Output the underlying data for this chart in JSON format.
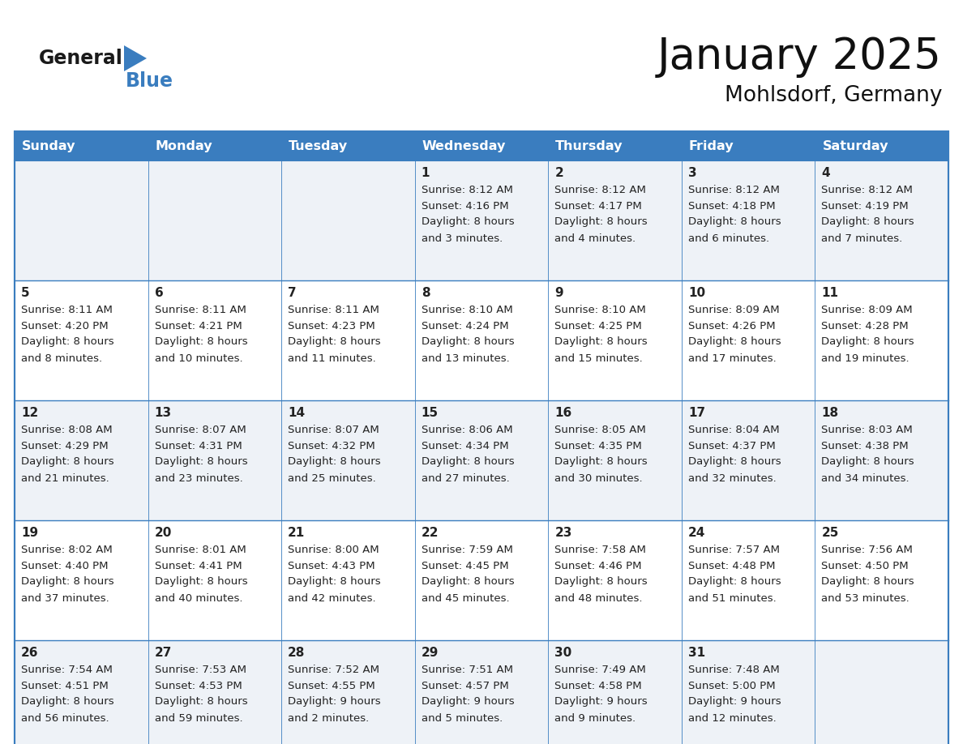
{
  "title": "January 2025",
  "subtitle": "Mohlsdorf, Germany",
  "header_color": "#3a7dbf",
  "header_text_color": "#ffffff",
  "cell_bg_even": "#eef2f7",
  "cell_bg_odd": "#ffffff",
  "border_color": "#3a7dbf",
  "text_color": "#222222",
  "day_names": [
    "Sunday",
    "Monday",
    "Tuesday",
    "Wednesday",
    "Thursday",
    "Friday",
    "Saturday"
  ],
  "days": [
    {
      "date": 1,
      "col": 3,
      "row": 0,
      "sunrise": "8:12 AM",
      "sunset": "4:16 PM",
      "daylight": "8 hours and 3 minutes."
    },
    {
      "date": 2,
      "col": 4,
      "row": 0,
      "sunrise": "8:12 AM",
      "sunset": "4:17 PM",
      "daylight": "8 hours and 4 minutes."
    },
    {
      "date": 3,
      "col": 5,
      "row": 0,
      "sunrise": "8:12 AM",
      "sunset": "4:18 PM",
      "daylight": "8 hours and 6 minutes."
    },
    {
      "date": 4,
      "col": 6,
      "row": 0,
      "sunrise": "8:12 AM",
      "sunset": "4:19 PM",
      "daylight": "8 hours and 7 minutes."
    },
    {
      "date": 5,
      "col": 0,
      "row": 1,
      "sunrise": "8:11 AM",
      "sunset": "4:20 PM",
      "daylight": "8 hours and 8 minutes."
    },
    {
      "date": 6,
      "col": 1,
      "row": 1,
      "sunrise": "8:11 AM",
      "sunset": "4:21 PM",
      "daylight": "8 hours and 10 minutes."
    },
    {
      "date": 7,
      "col": 2,
      "row": 1,
      "sunrise": "8:11 AM",
      "sunset": "4:23 PM",
      "daylight": "8 hours and 11 minutes."
    },
    {
      "date": 8,
      "col": 3,
      "row": 1,
      "sunrise": "8:10 AM",
      "sunset": "4:24 PM",
      "daylight": "8 hours and 13 minutes."
    },
    {
      "date": 9,
      "col": 4,
      "row": 1,
      "sunrise": "8:10 AM",
      "sunset": "4:25 PM",
      "daylight": "8 hours and 15 minutes."
    },
    {
      "date": 10,
      "col": 5,
      "row": 1,
      "sunrise": "8:09 AM",
      "sunset": "4:26 PM",
      "daylight": "8 hours and 17 minutes."
    },
    {
      "date": 11,
      "col": 6,
      "row": 1,
      "sunrise": "8:09 AM",
      "sunset": "4:28 PM",
      "daylight": "8 hours and 19 minutes."
    },
    {
      "date": 12,
      "col": 0,
      "row": 2,
      "sunrise": "8:08 AM",
      "sunset": "4:29 PM",
      "daylight": "8 hours and 21 minutes."
    },
    {
      "date": 13,
      "col": 1,
      "row": 2,
      "sunrise": "8:07 AM",
      "sunset": "4:31 PM",
      "daylight": "8 hours and 23 minutes."
    },
    {
      "date": 14,
      "col": 2,
      "row": 2,
      "sunrise": "8:07 AM",
      "sunset": "4:32 PM",
      "daylight": "8 hours and 25 minutes."
    },
    {
      "date": 15,
      "col": 3,
      "row": 2,
      "sunrise": "8:06 AM",
      "sunset": "4:34 PM",
      "daylight": "8 hours and 27 minutes."
    },
    {
      "date": 16,
      "col": 4,
      "row": 2,
      "sunrise": "8:05 AM",
      "sunset": "4:35 PM",
      "daylight": "8 hours and 30 minutes."
    },
    {
      "date": 17,
      "col": 5,
      "row": 2,
      "sunrise": "8:04 AM",
      "sunset": "4:37 PM",
      "daylight": "8 hours and 32 minutes."
    },
    {
      "date": 18,
      "col": 6,
      "row": 2,
      "sunrise": "8:03 AM",
      "sunset": "4:38 PM",
      "daylight": "8 hours and 34 minutes."
    },
    {
      "date": 19,
      "col": 0,
      "row": 3,
      "sunrise": "8:02 AM",
      "sunset": "4:40 PM",
      "daylight": "8 hours and 37 minutes."
    },
    {
      "date": 20,
      "col": 1,
      "row": 3,
      "sunrise": "8:01 AM",
      "sunset": "4:41 PM",
      "daylight": "8 hours and 40 minutes."
    },
    {
      "date": 21,
      "col": 2,
      "row": 3,
      "sunrise": "8:00 AM",
      "sunset": "4:43 PM",
      "daylight": "8 hours and 42 minutes."
    },
    {
      "date": 22,
      "col": 3,
      "row": 3,
      "sunrise": "7:59 AM",
      "sunset": "4:45 PM",
      "daylight": "8 hours and 45 minutes."
    },
    {
      "date": 23,
      "col": 4,
      "row": 3,
      "sunrise": "7:58 AM",
      "sunset": "4:46 PM",
      "daylight": "8 hours and 48 minutes."
    },
    {
      "date": 24,
      "col": 5,
      "row": 3,
      "sunrise": "7:57 AM",
      "sunset": "4:48 PM",
      "daylight": "8 hours and 51 minutes."
    },
    {
      "date": 25,
      "col": 6,
      "row": 3,
      "sunrise": "7:56 AM",
      "sunset": "4:50 PM",
      "daylight": "8 hours and 53 minutes."
    },
    {
      "date": 26,
      "col": 0,
      "row": 4,
      "sunrise": "7:54 AM",
      "sunset": "4:51 PM",
      "daylight": "8 hours and 56 minutes."
    },
    {
      "date": 27,
      "col": 1,
      "row": 4,
      "sunrise": "7:53 AM",
      "sunset": "4:53 PM",
      "daylight": "8 hours and 59 minutes."
    },
    {
      "date": 28,
      "col": 2,
      "row": 4,
      "sunrise": "7:52 AM",
      "sunset": "4:55 PM",
      "daylight": "9 hours and 2 minutes."
    },
    {
      "date": 29,
      "col": 3,
      "row": 4,
      "sunrise": "7:51 AM",
      "sunset": "4:57 PM",
      "daylight": "9 hours and 5 minutes."
    },
    {
      "date": 30,
      "col": 4,
      "row": 4,
      "sunrise": "7:49 AM",
      "sunset": "4:58 PM",
      "daylight": "9 hours and 9 minutes."
    },
    {
      "date": 31,
      "col": 5,
      "row": 4,
      "sunrise": "7:48 AM",
      "sunset": "5:00 PM",
      "daylight": "9 hours and 12 minutes."
    }
  ],
  "logo_general_color": "#1a1a1a",
  "logo_blue_color": "#3a7dbf",
  "logo_triangle_color": "#3a7dbf"
}
